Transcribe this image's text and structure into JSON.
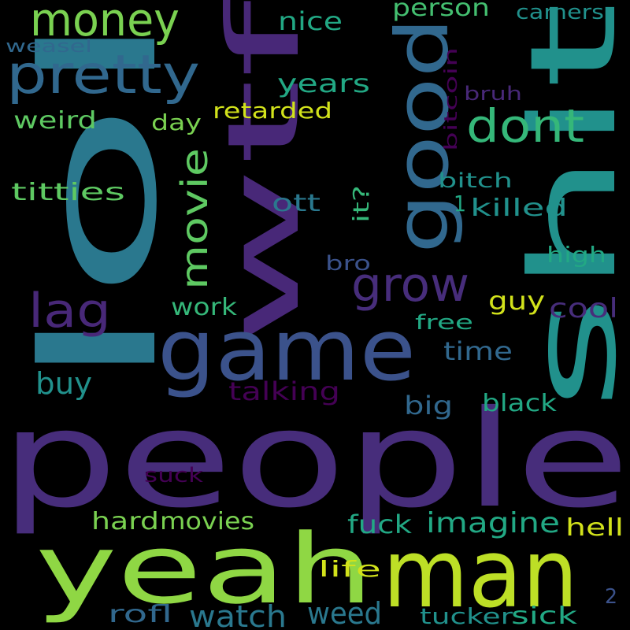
{
  "background": "#000000",
  "words": [
    {
      "text": "people",
      "color": "#472d7b"
    },
    {
      "text": "lol",
      "color": "#2a788e"
    },
    {
      "text": "wtf",
      "color": "#482878"
    },
    {
      "text": "shit",
      "color": "#21918c"
    },
    {
      "text": "game",
      "color": "#3b528b"
    },
    {
      "text": "yeah",
      "color": "#8fd744"
    },
    {
      "text": "man",
      "color": "#bddf26"
    },
    {
      "text": "good",
      "color": "#31688e"
    },
    {
      "text": "pretty",
      "color": "#31688e"
    },
    {
      "text": "money",
      "color": "#7ad151"
    },
    {
      "text": "dont",
      "color": "#35b779"
    },
    {
      "text": "movie",
      "color": "#5ec962"
    },
    {
      "text": "grow",
      "color": "#472d7b"
    },
    {
      "text": "lag",
      "color": "#482878"
    },
    {
      "text": "imagine",
      "color": "#22a884"
    },
    {
      "text": "watch",
      "color": "#2a788e"
    },
    {
      "text": "weed",
      "color": "#2a788e"
    },
    {
      "text": "movies",
      "color": "#7ad151"
    },
    {
      "text": "years",
      "color": "#22a884"
    },
    {
      "text": "nice",
      "color": "#22a884"
    },
    {
      "text": "person",
      "color": "#44bf70"
    },
    {
      "text": "camers",
      "color": "#21918c"
    },
    {
      "text": "weasel",
      "color": "#31688e"
    },
    {
      "text": "bitcoin",
      "color": "#440154"
    },
    {
      "text": "bruh",
      "color": "#482878"
    },
    {
      "text": "weird",
      "color": "#5ec962"
    },
    {
      "text": "day",
      "color": "#7ad151"
    },
    {
      "text": "retarded",
      "color": "#d2e21b"
    },
    {
      "text": "titties",
      "color": "#5ec962"
    },
    {
      "text": "bitch",
      "color": "#21918c"
    },
    {
      "text": "it?",
      "color": "#35b779"
    },
    {
      "text": "ott",
      "color": "#2a788e"
    },
    {
      "text": "1",
      "color": "#22a884"
    },
    {
      "text": "killed",
      "color": "#21918c"
    },
    {
      "text": "high",
      "color": "#22a884"
    },
    {
      "text": "bro",
      "color": "#3b528b"
    },
    {
      "text": "work",
      "color": "#35b779"
    },
    {
      "text": "guy",
      "color": "#d2e21b"
    },
    {
      "text": "cool",
      "color": "#472d7b"
    },
    {
      "text": "free",
      "color": "#22a884"
    },
    {
      "text": "time",
      "color": "#31688e"
    },
    {
      "text": "buy",
      "color": "#21918c"
    },
    {
      "text": "talking",
      "color": "#440154"
    },
    {
      "text": "big",
      "color": "#31688e"
    },
    {
      "text": "black",
      "color": "#22a884"
    },
    {
      "text": "suck",
      "color": "#440154"
    },
    {
      "text": "hard",
      "color": "#7ad151"
    },
    {
      "text": "fuck",
      "color": "#22a884"
    },
    {
      "text": "hell",
      "color": "#d2e21b"
    },
    {
      "text": "life",
      "color": "#d2e21b"
    },
    {
      "text": "rofl",
      "color": "#31688e"
    },
    {
      "text": "tucker",
      "color": "#21918c"
    },
    {
      "text": "sick",
      "color": "#22a884"
    },
    {
      "text": "2",
      "color": "#3b528b"
    }
  ]
}
